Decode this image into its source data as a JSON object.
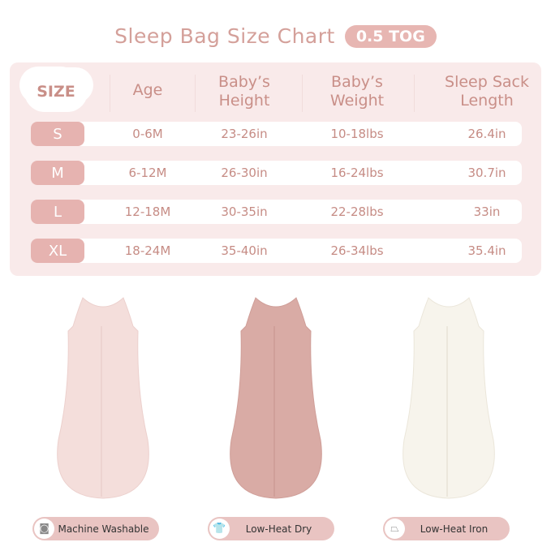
{
  "title": "Sleep Bag Size Chart",
  "badge": "0.5 TOG",
  "headers": {
    "size": "SIZE",
    "age": "Age",
    "height": [
      "Baby’s",
      "Height"
    ],
    "weight": [
      "Baby’s",
      "Weight"
    ],
    "length": [
      "Sleep Sack",
      "Length"
    ]
  },
  "rows": [
    {
      "size": "S",
      "age": "0-6M",
      "height": "23-26in",
      "weight": "10-18lbs",
      "length": "26.4in"
    },
    {
      "size": "M",
      "age": "6-12M",
      "height": "26-30in",
      "weight": "16-24lbs",
      "length": "30.7in"
    },
    {
      "size": "L",
      "age": "12-18M",
      "height": "30-35in",
      "weight": "22-28lbs",
      "length": "33in"
    },
    {
      "size": "XL",
      "age": "18-24M",
      "height": "35-40in",
      "weight": "26-34lbs",
      "length": "35.4in"
    }
  ],
  "products": [
    {
      "color": "#f4dedb"
    },
    {
      "color": "#d9aba5"
    },
    {
      "color": "#f7f4ec"
    }
  ],
  "care": [
    {
      "icon": "washing-machine-icon",
      "label": "Machine Washable"
    },
    {
      "icon": "tshirt-dry-icon",
      "label": "Low-Heat Dry"
    },
    {
      "icon": "iron-icon",
      "label": "Low-Heat Iron"
    }
  ],
  "colors": {
    "accent": "#e6b3b0",
    "text": "#c98f88",
    "panel": "#f9eaea"
  }
}
